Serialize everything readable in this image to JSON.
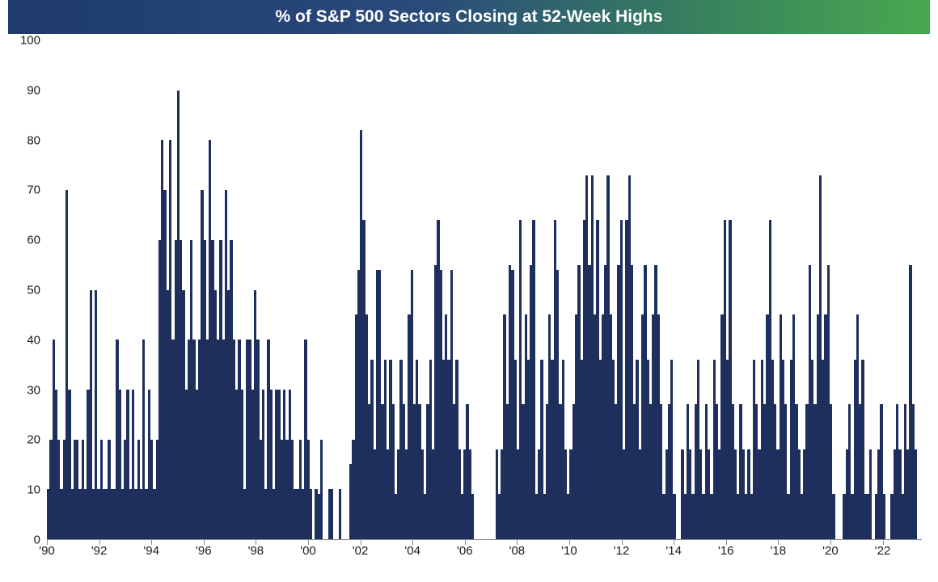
{
  "chart": {
    "type": "bar",
    "title": "% of S&P 500 Sectors Closing at 52-Week Highs",
    "title_fontsize": 21,
    "title_color": "#ffffff",
    "title_bg_gradient": [
      "#1e3a6e",
      "#2a4a7a",
      "#3a8a5a",
      "#4aa850"
    ],
    "bar_color": "#1e2f5e",
    "background_color": "#ffffff",
    "axis_label_color": "#1a1a1a",
    "axis_label_fontsize": 15,
    "ylim": [
      0,
      100
    ],
    "ytick_step": 10,
    "yticks": [
      0,
      10,
      20,
      30,
      40,
      50,
      60,
      70,
      80,
      90,
      100
    ],
    "x_start_year": 1990,
    "x_end_year": 2023.5,
    "xtick_step_years": 2,
    "xticks": [
      "'90",
      "'92",
      "'94",
      "'96",
      "'98",
      "'00",
      "'02",
      "'04",
      "'06",
      "'08",
      "'10",
      "'12",
      "'14",
      "'16",
      "'18",
      "'20",
      "'22"
    ],
    "values": [
      10,
      20,
      40,
      30,
      20,
      10,
      20,
      70,
      30,
      10,
      20,
      20,
      10,
      20,
      10,
      30,
      50,
      10,
      50,
      10,
      20,
      10,
      10,
      20,
      10,
      10,
      40,
      30,
      10,
      20,
      30,
      10,
      30,
      10,
      20,
      10,
      40,
      10,
      30,
      20,
      10,
      20,
      60,
      80,
      70,
      50,
      80,
      40,
      60,
      90,
      60,
      50,
      30,
      40,
      60,
      40,
      30,
      40,
      70,
      60,
      40,
      80,
      60,
      50,
      40,
      60,
      40,
      70,
      50,
      60,
      40,
      30,
      40,
      30,
      10,
      40,
      40,
      30,
      50,
      40,
      20,
      30,
      10,
      40,
      30,
      10,
      30,
      30,
      20,
      30,
      20,
      30,
      20,
      10,
      10,
      20,
      10,
      40,
      20,
      10,
      0,
      10,
      9,
      20,
      0,
      0,
      10,
      10,
      0,
      0,
      10,
      0,
      0,
      0,
      15,
      20,
      45,
      54,
      82,
      64,
      45,
      27,
      36,
      18,
      54,
      54,
      27,
      36,
      18,
      36,
      27,
      9,
      18,
      36,
      27,
      18,
      45,
      54,
      27,
      36,
      27,
      18,
      9,
      27,
      36,
      18,
      55,
      64,
      54,
      36,
      45,
      36,
      54,
      27,
      36,
      18,
      9,
      18,
      27,
      18,
      9,
      0,
      0,
      0,
      0,
      0,
      0,
      0,
      0,
      18,
      9,
      18,
      45,
      27,
      55,
      54,
      36,
      18,
      64,
      27,
      45,
      36,
      55,
      64,
      9,
      18,
      36,
      9,
      27,
      45,
      36,
      64,
      54,
      27,
      36,
      18,
      9,
      18,
      27,
      45,
      55,
      36,
      64,
      73,
      55,
      73,
      45,
      64,
      36,
      45,
      55,
      73,
      45,
      36,
      27,
      55,
      64,
      18,
      64,
      73,
      55,
      27,
      36,
      18,
      45,
      55,
      36,
      27,
      45,
      55,
      45,
      27,
      9,
      18,
      27,
      36,
      9,
      0,
      0,
      18,
      9,
      27,
      18,
      9,
      27,
      36,
      18,
      9,
      27,
      18,
      9,
      36,
      27,
      18,
      45,
      64,
      36,
      64,
      27,
      18,
      9,
      27,
      18,
      9,
      18,
      9,
      36,
      27,
      18,
      36,
      27,
      45,
      64,
      36,
      27,
      18,
      45,
      36,
      27,
      9,
      36,
      45,
      27,
      18,
      9,
      18,
      27,
      55,
      36,
      27,
      45,
      73,
      36,
      45,
      55,
      27,
      9,
      0,
      0,
      0,
      9,
      18,
      27,
      9,
      36,
      45,
      27,
      36,
      9,
      9,
      18,
      0,
      9,
      18,
      27,
      9,
      0,
      0,
      9,
      18,
      27,
      18,
      9,
      27,
      18,
      55,
      27,
      18,
      0
    ]
  }
}
